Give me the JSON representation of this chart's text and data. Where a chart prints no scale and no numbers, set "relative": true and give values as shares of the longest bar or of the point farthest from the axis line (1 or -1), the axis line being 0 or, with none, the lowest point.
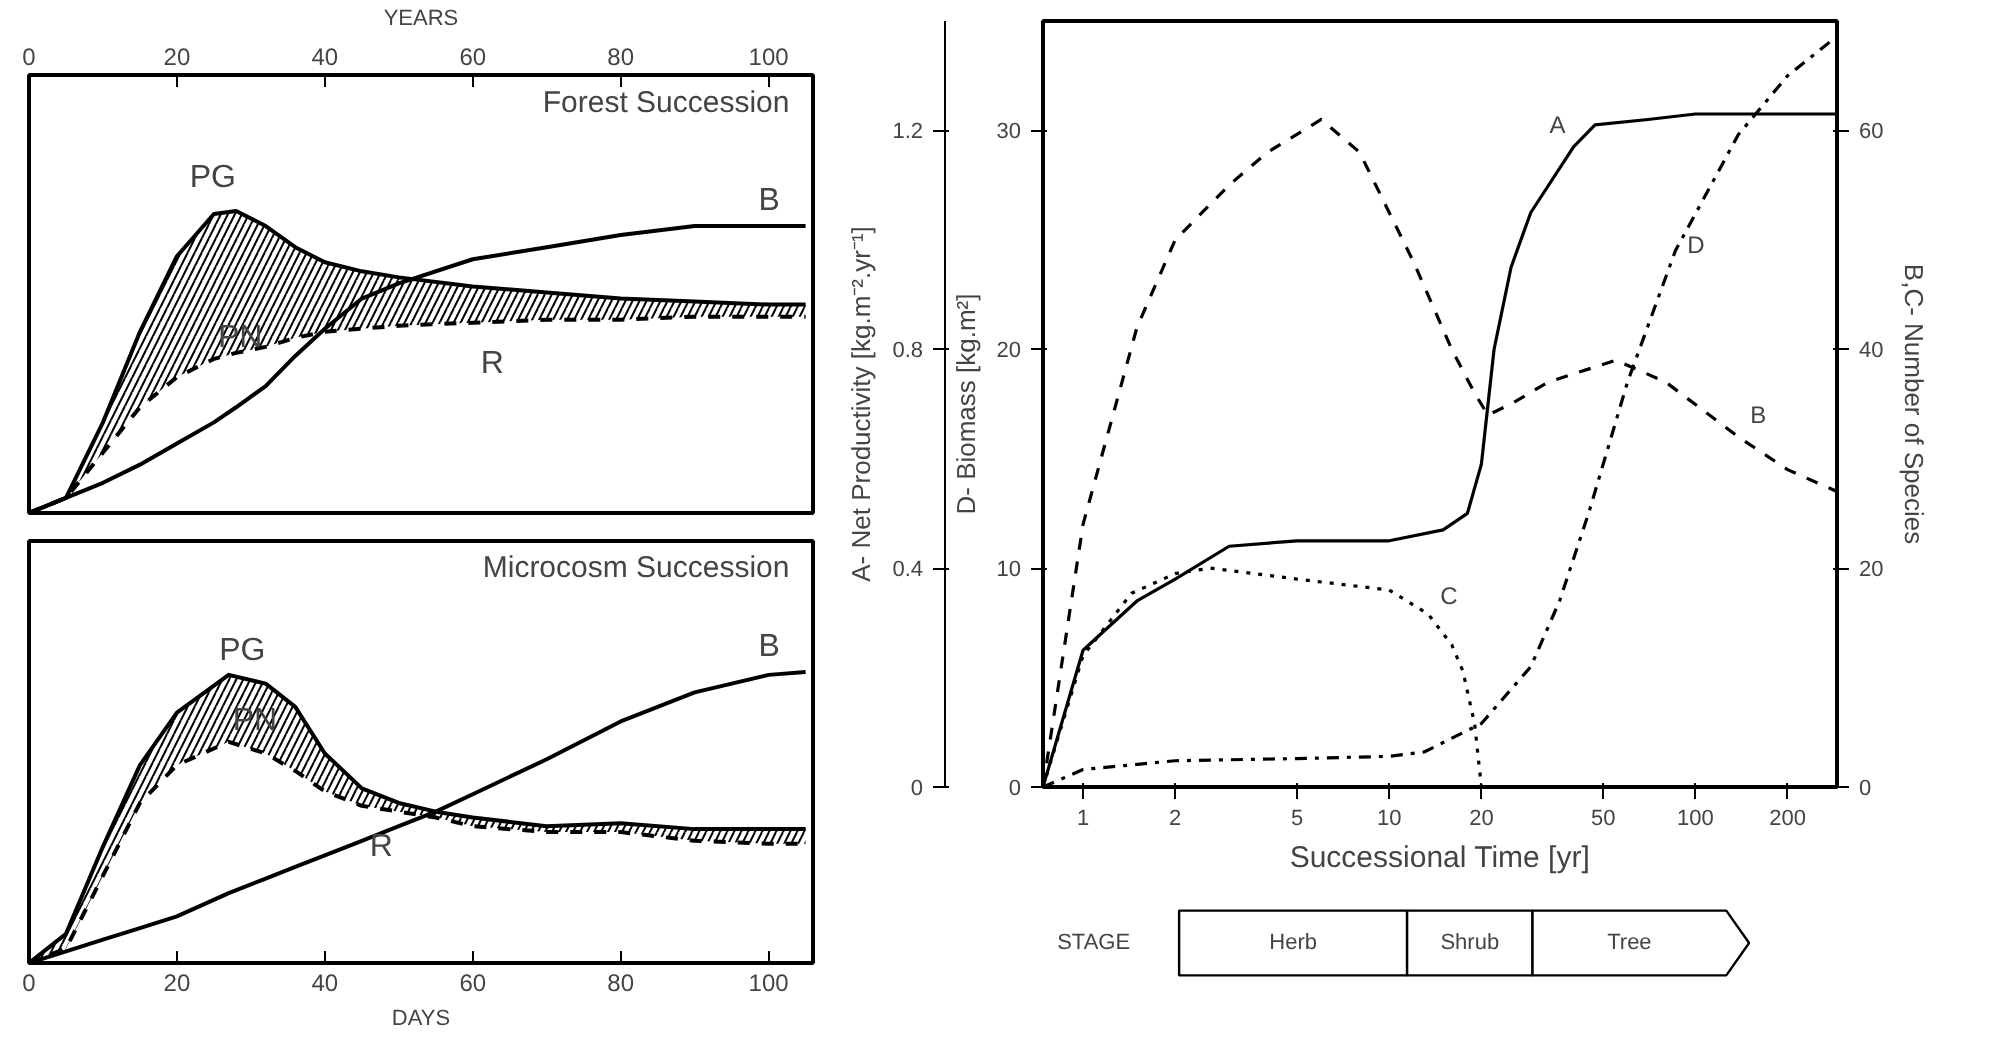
{
  "chart_data": [
    {
      "type": "line",
      "title": "Forest Succession",
      "relative": true,
      "xlabel": "YEARS",
      "xlim": [
        0,
        106
      ],
      "xticks": [
        0,
        20,
        40,
        60,
        80,
        100
      ],
      "x": [
        0,
        5,
        10,
        15,
        20,
        25,
        28,
        32,
        36,
        40,
        45,
        50,
        60,
        70,
        80,
        90,
        100,
        105
      ],
      "series": [
        {
          "name": "PG",
          "color": "#000000",
          "line_style": "solid",
          "values": [
            0,
            0.05,
            0.3,
            0.6,
            0.85,
            0.99,
            1.0,
            0.95,
            0.88,
            0.83,
            0.8,
            0.78,
            0.75,
            0.73,
            0.71,
            0.7,
            0.69,
            0.69
          ],
          "lower": [
            0,
            0.05,
            0.2,
            0.35,
            0.45,
            0.51,
            0.53,
            0.55,
            0.58,
            0.6,
            0.61,
            0.62,
            0.63,
            0.64,
            0.64,
            0.65,
            0.65,
            0.65
          ],
          "upper": [
            0,
            0.05,
            0.3,
            0.6,
            0.85,
            0.99,
            1.0,
            0.95,
            0.88,
            0.83,
            0.8,
            0.78,
            0.75,
            0.73,
            0.71,
            0.7,
            0.69,
            0.69
          ]
        },
        {
          "name": "PN",
          "color": "#000000",
          "line_style": "dashed",
          "values": [
            0,
            0.05,
            0.2,
            0.35,
            0.45,
            0.51,
            0.53,
            0.55,
            0.58,
            0.6,
            0.61,
            0.62,
            0.63,
            0.64,
            0.64,
            0.65,
            0.65,
            0.65
          ]
        },
        {
          "name": "B",
          "color": "#000000",
          "line_style": "solid",
          "values": [
            0,
            0.05,
            0.1,
            0.16,
            0.23,
            0.3,
            0.35,
            0.42,
            0.52,
            0.61,
            0.71,
            0.76,
            0.84,
            0.88,
            0.92,
            0.95,
            0.95,
            0.95
          ]
        }
      ],
      "annotations": [
        "R"
      ]
    },
    {
      "type": "line",
      "title": "Microcosm Succession",
      "relative": true,
      "xlabel": "DAYS",
      "xlim": [
        0,
        106
      ],
      "xticks": [
        0,
        20,
        40,
        60,
        80,
        100
      ],
      "x": [
        0,
        5,
        10,
        15,
        20,
        27,
        32,
        36,
        40,
        45,
        50,
        55,
        60,
        70,
        80,
        90,
        100,
        105
      ],
      "series": [
        {
          "name": "PG",
          "color": "#000000",
          "line_style": "solid",
          "values": [
            0,
            0.1,
            0.4,
            0.68,
            0.86,
            0.99,
            0.96,
            0.88,
            0.72,
            0.6,
            0.55,
            0.52,
            0.5,
            0.47,
            0.48,
            0.46,
            0.46,
            0.46
          ],
          "lower": [
            0,
            0.05,
            0.3,
            0.55,
            0.68,
            0.76,
            0.72,
            0.66,
            0.59,
            0.54,
            0.52,
            0.5,
            0.47,
            0.45,
            0.45,
            0.42,
            0.41,
            0.41
          ],
          "upper": [
            0,
            0.1,
            0.4,
            0.68,
            0.86,
            0.99,
            0.96,
            0.88,
            0.72,
            0.6,
            0.55,
            0.52,
            0.5,
            0.47,
            0.48,
            0.46,
            0.46,
            0.46
          ]
        },
        {
          "name": "PN",
          "color": "#000000",
          "line_style": "dashed",
          "values": [
            0,
            0.05,
            0.3,
            0.55,
            0.68,
            0.76,
            0.72,
            0.66,
            0.59,
            0.54,
            0.52,
            0.5,
            0.47,
            0.45,
            0.45,
            0.42,
            0.41,
            0.41
          ]
        },
        {
          "name": "B",
          "color": "#000000",
          "line_style": "solid",
          "values": [
            0,
            0.04,
            0.08,
            0.12,
            0.16,
            0.24,
            0.29,
            0.33,
            0.37,
            0.42,
            0.47,
            0.52,
            0.58,
            0.7,
            0.83,
            0.93,
            0.99,
            1.0
          ]
        }
      ],
      "annotations": [
        "R"
      ]
    },
    {
      "type": "line",
      "log": "x",
      "xlabel": "Successional Time [yr]",
      "ylabel": "A- Net Productivity [kg.m⁻².yr⁻¹]",
      "y3label": "D- Biomass [kg.m²]",
      "y2label": "B,C- Number of Species",
      "xlim": [
        0.74,
        290
      ],
      "xticks": [
        1,
        2,
        5,
        10,
        20,
        50,
        100,
        200
      ],
      "ylim": [
        0,
        1.4
      ],
      "yticks": [
        0,
        0.4,
        0.8,
        1.2
      ],
      "y3lim": [
        0,
        35
      ],
      "y3ticks": [
        0,
        10,
        20,
        30
      ],
      "y2lim": [
        0,
        70
      ],
      "y2ticks": [
        0,
        20,
        40,
        60
      ],
      "series": [
        {
          "name": "A",
          "color": "#000000",
          "line_style": "solid",
          "x": [
            0.74,
            1,
            1.5,
            2,
            3,
            5,
            10,
            15,
            18,
            20,
            22,
            25,
            29,
            40,
            47,
            70,
            100,
            200,
            290
          ],
          "values": [
            0,
            0.25,
            0.34,
            0.38,
            0.44,
            0.45,
            0.45,
            0.47,
            0.5,
            0.59,
            0.8,
            0.95,
            1.05,
            1.17,
            1.21,
            1.22,
            1.23,
            1.23,
            1.23
          ]
        },
        {
          "name": "B",
          "color": "#000000",
          "line_style": "dashed",
          "axis": "y2",
          "x": [
            0.74,
            1,
            1.5,
            2,
            3,
            4,
            6,
            8,
            12,
            16,
            19,
            21,
            25,
            33,
            55,
            80,
            138,
            200,
            290
          ],
          "values": [
            0,
            24,
            42,
            50,
            55,
            58,
            61,
            58,
            48,
            40,
            36,
            34,
            35,
            37,
            39,
            37,
            32,
            29,
            27
          ]
        },
        {
          "name": "C",
          "color": "#000000",
          "line_style": "dotted",
          "axis": "y2",
          "x": [
            0.74,
            1,
            1.44,
            2,
            2.6,
            5,
            10,
            13.4,
            16,
            17.4,
            19,
            20
          ],
          "values": [
            0,
            12,
            17.7,
            19.5,
            20,
            19,
            18,
            15.8,
            13,
            10.6,
            5.8,
            0
          ]
        },
        {
          "name": "D",
          "color": "#000000",
          "line_style": "dashdot",
          "axis": "y3",
          "x": [
            0.74,
            1,
            2,
            5,
            10,
            13,
            20,
            29,
            36,
            45,
            60,
            86,
            138,
            200,
            290
          ],
          "values": [
            0,
            0.8,
            1.2,
            1.3,
            1.4,
            1.6,
            2.9,
            5.5,
            8.5,
            12.6,
            18.5,
            24.5,
            29.8,
            32.5,
            34.3
          ]
        }
      ]
    },
    {
      "type": "other",
      "title": "STAGE",
      "categories": [
        "Herb",
        "Shrub",
        "Tree"
      ]
    }
  ]
}
